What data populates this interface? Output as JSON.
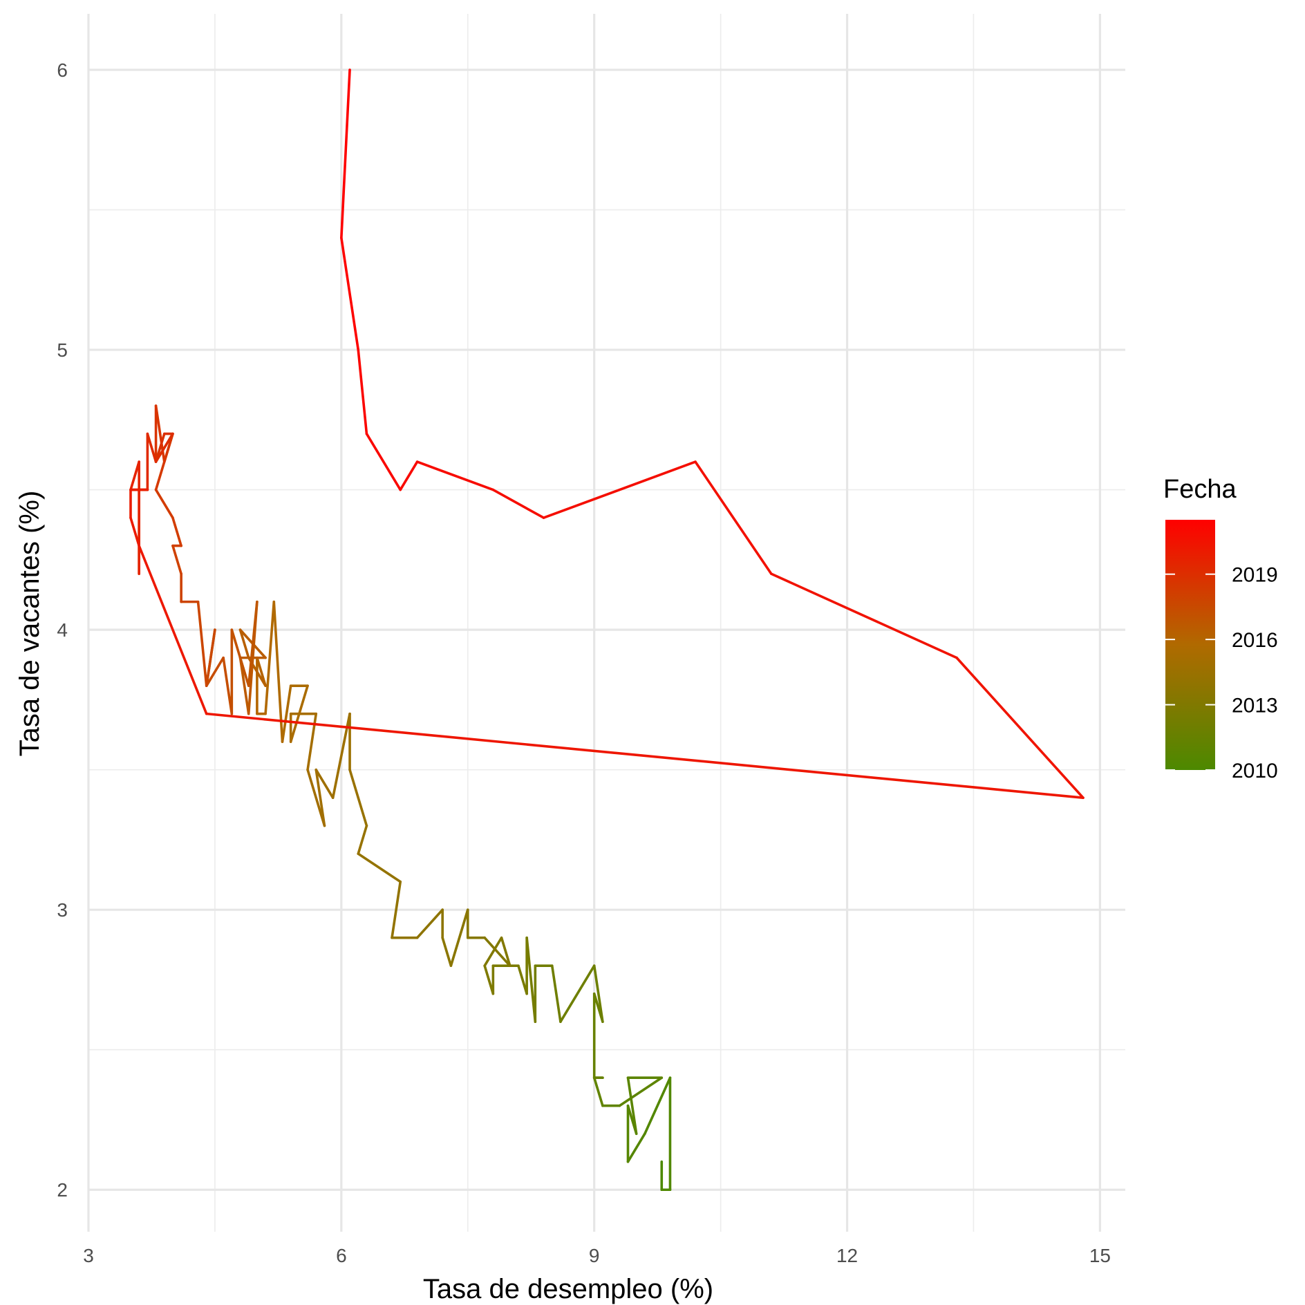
{
  "chart_data": {
    "type": "line",
    "xlabel": "Tasa de desempleo (%)",
    "ylabel": "Tasa de vacantes (%)",
    "xlim": [
      3,
      15.3
    ],
    "ylim": [
      1.85,
      6.2
    ],
    "x_ticks": [
      3,
      6,
      9,
      12,
      15
    ],
    "y_ticks": [
      2,
      3,
      4,
      5,
      6
    ],
    "grid": true,
    "legend": {
      "title": "Fecha",
      "placement": "right",
      "type": "colorbar",
      "breaks": [
        2010,
        2013,
        2016,
        2019
      ],
      "range": [
        2010,
        2021.5
      ],
      "color_low": "#4C8900",
      "color_high": "#FF0000"
    },
    "series": [
      {
        "points": [
          [
            9.8,
            2.1
          ],
          [
            9.8,
            2.0
          ],
          [
            9.9,
            2.0
          ],
          [
            9.9,
            2.4
          ],
          [
            9.6,
            2.2
          ],
          [
            9.4,
            2.1
          ],
          [
            9.4,
            2.3
          ],
          [
            9.5,
            2.2
          ],
          [
            9.4,
            2.4
          ],
          [
            9.8,
            2.4
          ],
          [
            9.3,
            2.3
          ],
          [
            9.1,
            2.3
          ],
          [
            9.0,
            2.4
          ],
          [
            9.1,
            2.4
          ],
          [
            9.0,
            2.4
          ],
          [
            9.0,
            2.5
          ],
          [
            9.0,
            2.7
          ],
          [
            9.1,
            2.6
          ],
          [
            9.0,
            2.8
          ],
          [
            8.6,
            2.6
          ],
          [
            8.5,
            2.8
          ],
          [
            8.3,
            2.8
          ],
          [
            8.3,
            2.6
          ],
          [
            8.2,
            2.9
          ],
          [
            8.2,
            2.7
          ],
          [
            8.1,
            2.8
          ],
          [
            7.8,
            2.8
          ],
          [
            7.8,
            2.7
          ],
          [
            7.7,
            2.8
          ],
          [
            7.9,
            2.9
          ],
          [
            8.0,
            2.8
          ],
          [
            7.7,
            2.9
          ],
          [
            7.5,
            2.9
          ],
          [
            7.5,
            3.0
          ],
          [
            7.3,
            2.8
          ],
          [
            7.2,
            2.9
          ],
          [
            7.2,
            3.0
          ],
          [
            6.9,
            2.9
          ],
          [
            6.6,
            2.9
          ],
          [
            6.7,
            3.1
          ],
          [
            6.2,
            3.2
          ],
          [
            6.3,
            3.3
          ],
          [
            6.2,
            3.4
          ],
          [
            6.1,
            3.5
          ],
          [
            6.1,
            3.7
          ],
          [
            5.9,
            3.4
          ],
          [
            5.7,
            3.5
          ],
          [
            5.8,
            3.3
          ],
          [
            5.6,
            3.5
          ],
          [
            5.7,
            3.7
          ],
          [
            5.4,
            3.7
          ],
          [
            5.4,
            3.6
          ],
          [
            5.6,
            3.8
          ],
          [
            5.4,
            3.8
          ],
          [
            5.3,
            3.6
          ],
          [
            5.2,
            4.1
          ],
          [
            5.1,
            3.7
          ],
          [
            5.0,
            3.7
          ],
          [
            5.0,
            3.9
          ],
          [
            5.1,
            3.8
          ],
          [
            4.9,
            3.9
          ],
          [
            4.8,
            4.0
          ],
          [
            5.1,
            3.9
          ],
          [
            4.8,
            3.9
          ],
          [
            4.9,
            3.7
          ],
          [
            5.0,
            4.1
          ],
          [
            4.9,
            3.8
          ],
          [
            4.8,
            3.9
          ],
          [
            4.7,
            4.0
          ],
          [
            4.7,
            3.7
          ],
          [
            4.6,
            3.9
          ],
          [
            4.4,
            3.8
          ],
          [
            4.5,
            4.0
          ],
          [
            4.4,
            3.8
          ],
          [
            4.3,
            4.1
          ],
          [
            4.1,
            4.1
          ],
          [
            4.1,
            4.2
          ],
          [
            4.0,
            4.3
          ],
          [
            4.1,
            4.3
          ],
          [
            4.0,
            4.4
          ],
          [
            3.8,
            4.5
          ],
          [
            4.0,
            4.7
          ],
          [
            3.9,
            4.6
          ],
          [
            3.8,
            4.8
          ],
          [
            3.8,
            4.6
          ],
          [
            3.9,
            4.7
          ],
          [
            4.0,
            4.7
          ],
          [
            3.8,
            4.6
          ],
          [
            3.7,
            4.7
          ],
          [
            3.7,
            4.5
          ],
          [
            3.6,
            4.5
          ],
          [
            3.6,
            4.2
          ],
          [
            3.6,
            4.6
          ],
          [
            3.5,
            4.5
          ],
          [
            3.7,
            4.5
          ],
          [
            3.5,
            4.5
          ],
          [
            3.5,
            4.4
          ],
          [
            3.6,
            4.3
          ],
          [
            4.4,
            3.7
          ],
          [
            14.8,
            3.4
          ],
          [
            13.3,
            3.9
          ],
          [
            11.1,
            4.2
          ],
          [
            10.2,
            4.6
          ],
          [
            8.4,
            4.4
          ],
          [
            7.8,
            4.5
          ],
          [
            6.9,
            4.6
          ],
          [
            6.7,
            4.5
          ],
          [
            6.3,
            4.7
          ],
          [
            6.2,
            5.0
          ],
          [
            6.0,
            5.4
          ],
          [
            6.1,
            6.0
          ]
        ]
      }
    ]
  }
}
